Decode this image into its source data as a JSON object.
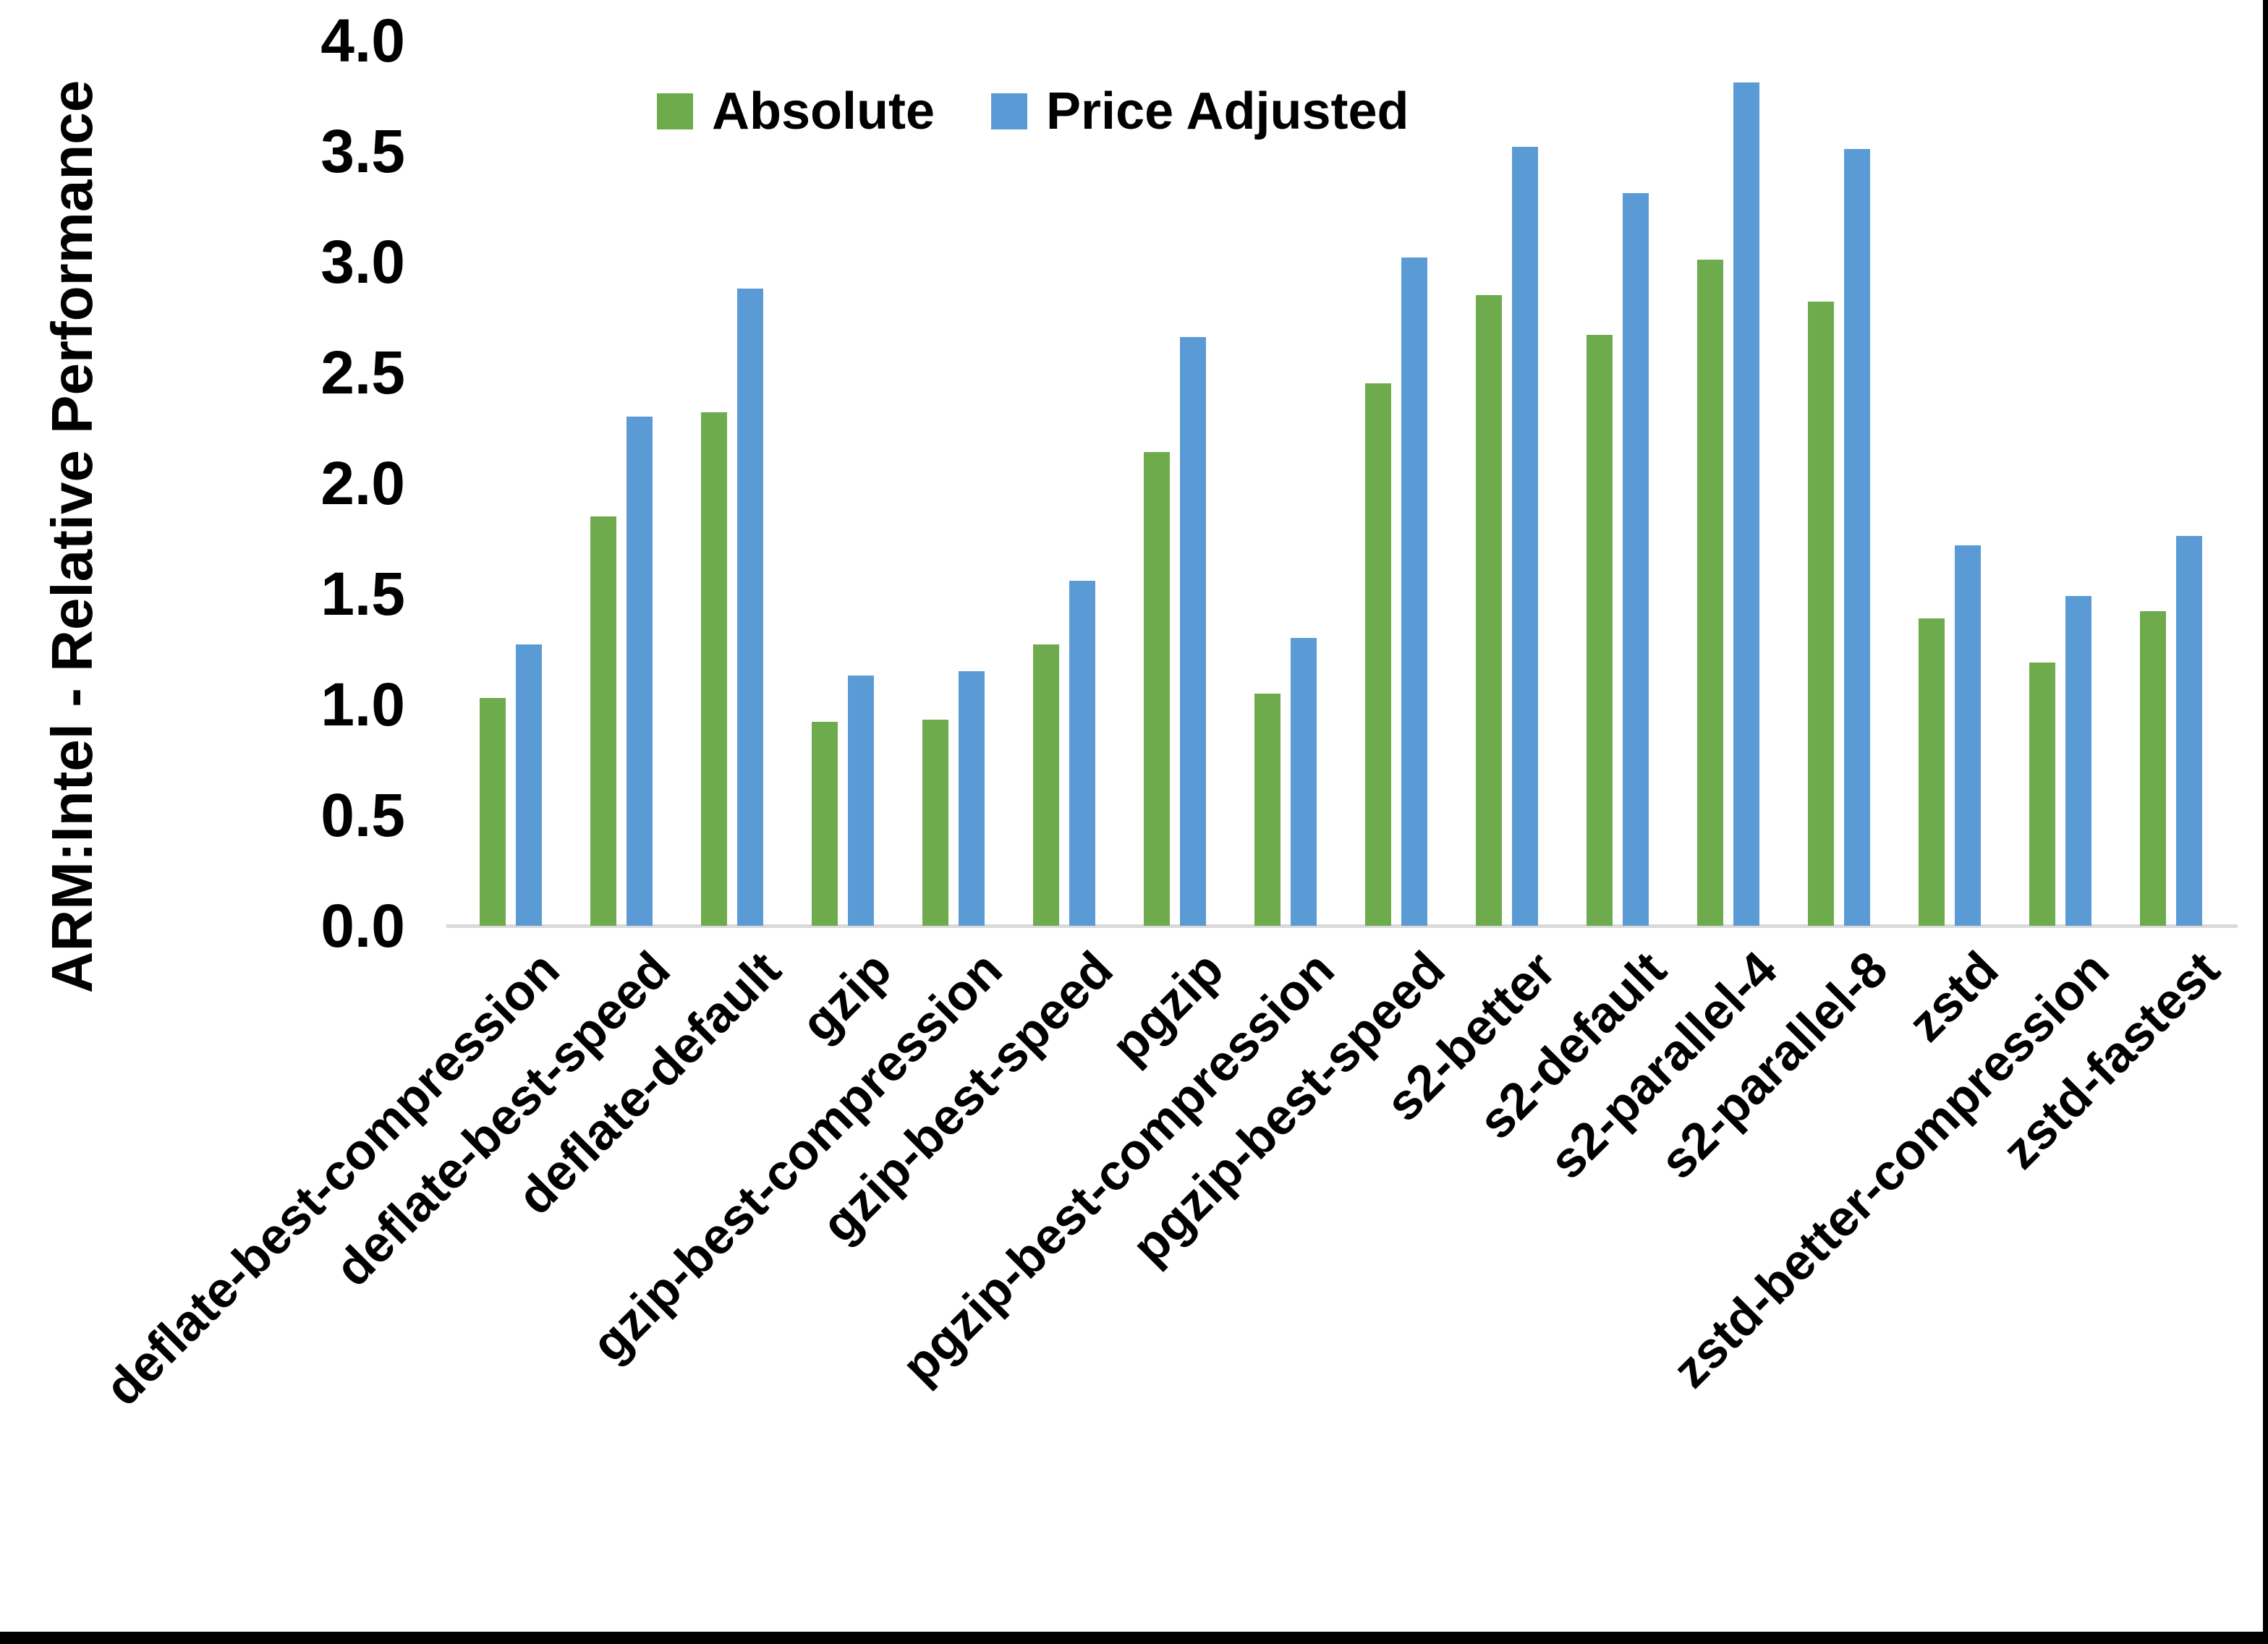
{
  "chart_data": {
    "type": "bar",
    "title": "",
    "ylabel": "ARM:Intel - Relative Performance",
    "xlabel": "",
    "ylim": [
      0.0,
      4.0
    ],
    "ytick_step": 0.5,
    "yticks": [
      "0.0",
      "0.5",
      "1.0",
      "1.5",
      "2.0",
      "2.5",
      "3.0",
      "3.5",
      "4.0"
    ],
    "grid": false,
    "legend_position": "top-center",
    "axis_line_color": "#D9D9D9",
    "background_color": "#FFFFFF",
    "text_color": "#000000",
    "border_color": "#000000",
    "categories": [
      "deflate-best-compression",
      "deflate-best-speed",
      "deflate-default",
      "gzip",
      "gzip-best-compression",
      "gzip-best-speed",
      "pgzip",
      "pgzip-best-compression",
      "pgzip-best-speed",
      "s2-better",
      "s2-default",
      "s2-parallel-4",
      "s2-parallel-8",
      "zstd",
      "zstd-better-compression",
      "zstd-fastest"
    ],
    "series": [
      {
        "name": "Absolute",
        "color": "#6DAB4C",
        "values": [
          1.03,
          1.85,
          2.32,
          0.92,
          0.93,
          1.27,
          2.14,
          1.05,
          2.45,
          2.85,
          2.67,
          3.01,
          2.82,
          1.39,
          1.19,
          1.42
        ]
      },
      {
        "name": "Price Adjusted",
        "color": "#5B9BD5",
        "values": [
          1.27,
          2.3,
          2.88,
          1.13,
          1.15,
          1.56,
          2.66,
          1.3,
          3.02,
          3.52,
          3.31,
          3.81,
          3.51,
          1.72,
          1.49,
          1.76
        ]
      }
    ]
  }
}
